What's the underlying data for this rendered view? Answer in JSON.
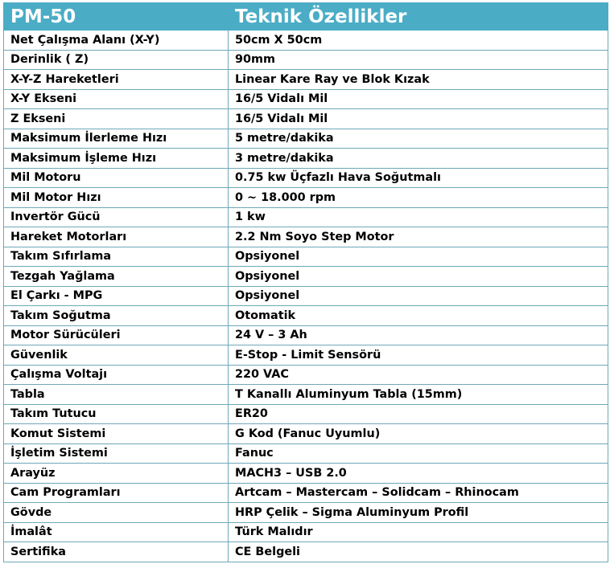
{
  "header": {
    "model": "PM-50",
    "title": "Teknik Özellikler",
    "color": "#4bacc6"
  },
  "specs": [
    {
      "label": "Net Çalışma Alanı (X-Y)",
      "value": "50cm X 50cm"
    },
    {
      "label": "Derinlik ( Z)",
      "value": "90mm"
    },
    {
      "label": "X-Y-Z Hareketleri",
      "value": "Linear Kare Ray ve Blok Kızak"
    },
    {
      "label": "X-Y Ekseni",
      "value": "16/5 Vidalı Mil"
    },
    {
      "label": "Z Ekseni",
      "value": "16/5 Vidalı Mil"
    },
    {
      "label": "Maksimum İlerleme Hızı",
      "value": "5 metre/dakika"
    },
    {
      "label": "Maksimum İşleme Hızı",
      "value": "3 metre/dakika"
    },
    {
      "label": "Mil Motoru",
      "value": "0.75 kw Üçfazlı Hava Soğutmalı"
    },
    {
      "label": "Mil Motor Hızı",
      "value": "0 ~ 18.000 rpm"
    },
    {
      "label": "Invertör Gücü",
      "value": "1  kw"
    },
    {
      "label": "Hareket Motorları",
      "value": "2.2 Nm Soyo Step Motor"
    },
    {
      "label": "Takım Sıfırlama",
      "value": "Opsiyonel"
    },
    {
      "label": "Tezgah Yağlama",
      "value": "Opsiyonel"
    },
    {
      "label": "El Çarkı - MPG",
      "value": "Opsiyonel"
    },
    {
      "label": "Takım Soğutma",
      "value": "Otomatik"
    },
    {
      "label": "Motor Sürücüleri",
      "value": "24 V – 3 Ah"
    },
    {
      "label": "Güvenlik",
      "value": "E-Stop - Limit Sensörü"
    },
    {
      "label": "Çalışma Voltajı",
      "value": "220 VAC"
    },
    {
      "label": "Tabla",
      "value": "T Kanallı Aluminyum Tabla (15mm)"
    },
    {
      "label": "Takım Tutucu",
      "value": "ER20"
    },
    {
      "label": "Komut Sistemi",
      "value": "G Kod (Fanuc Uyumlu)"
    },
    {
      "label": "İşletim Sistemi",
      "value": "Fanuc"
    },
    {
      "label": "Arayüz",
      "value": "MACH3 – USB 2.0"
    },
    {
      "label": "Cam Programları",
      "value": "Artcam – Mastercam – Solidcam – Rhinocam"
    },
    {
      "label": "Gövde",
      "value": "HRP Çelik – Sigma Aluminyum Profil"
    },
    {
      "label": "İmalât",
      "value": "Türk Malıdır"
    },
    {
      "label": "Sertifika",
      "value": "CE Belgeli"
    }
  ]
}
